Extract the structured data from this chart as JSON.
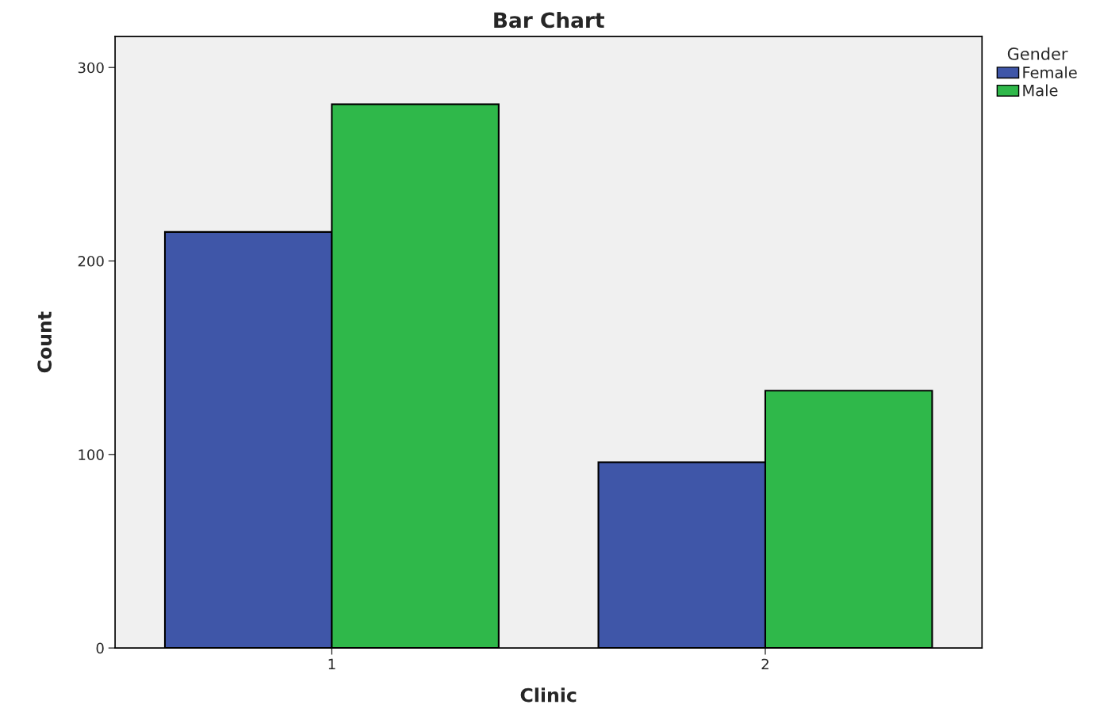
{
  "chart_data": {
    "type": "bar",
    "title": "Bar Chart",
    "xlabel": "Clinic",
    "ylabel": "Count",
    "legend_title": "Gender",
    "categories": [
      "1",
      "2"
    ],
    "series": [
      {
        "name": "Female",
        "color": "#3f56a8",
        "values": [
          215,
          96
        ]
      },
      {
        "name": "Male",
        "color": "#2fb84a",
        "values": [
          281,
          133
        ]
      }
    ],
    "ylim": [
      0,
      316
    ],
    "yticks": [
      0,
      100,
      200,
      300
    ],
    "grid": false,
    "legend": "top right"
  }
}
